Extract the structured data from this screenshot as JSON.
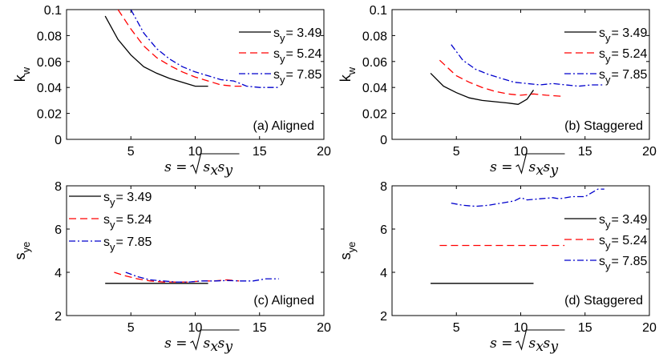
{
  "figure": {
    "xlabel_main": "s = ",
    "xlabel_sqrt_arg": "s",
    "xlabel_sub1": "x",
    "xlabel_sub2": "y"
  },
  "chart_data": [
    {
      "type": "line",
      "annotation": "(a) Aligned",
      "ylabel": "k",
      "ylabel_sub": "w",
      "xlim": [
        0,
        20
      ],
      "ylim": [
        0,
        0.1
      ],
      "xticks": [
        "5",
        "10",
        "15",
        "20"
      ],
      "yticks": [
        "0",
        "0.02",
        "0.04",
        "0.06",
        "0.08",
        "0.1"
      ],
      "legend_position": "top-right",
      "series": [
        {
          "legend_prefix": "s",
          "legend_sub": "y",
          "legend_value": "= 3.49",
          "color": "#000000",
          "dash": "",
          "x": [
            3.0,
            4.0,
            5.0,
            6.0,
            7.0,
            8.0,
            9.0,
            10.0,
            11.0
          ],
          "y": [
            0.095,
            0.077,
            0.065,
            0.056,
            0.051,
            0.047,
            0.044,
            0.041,
            0.041
          ]
        },
        {
          "legend_prefix": "s",
          "legend_sub": "y",
          "legend_value": "= 5.24",
          "color": "#ff0000",
          "dash": "9,5",
          "x": [
            4.0,
            5.0,
            6.0,
            7.0,
            8.0,
            9.0,
            10.0,
            11.0,
            12.0,
            13.0,
            13.6
          ],
          "y": [
            0.1,
            0.085,
            0.072,
            0.063,
            0.057,
            0.052,
            0.048,
            0.045,
            0.042,
            0.041,
            0.041
          ]
        },
        {
          "legend_prefix": "s",
          "legend_sub": "y",
          "legend_value": "= 7.85",
          "color": "#0000cc",
          "dash": "8,3,2,3",
          "x": [
            5.0,
            6.0,
            7.0,
            8.0,
            9.0,
            10.0,
            11.0,
            12.0,
            13.0,
            14.0,
            15.0,
            16.5
          ],
          "y": [
            0.1,
            0.082,
            0.07,
            0.062,
            0.056,
            0.052,
            0.049,
            0.046,
            0.045,
            0.041,
            0.04,
            0.04
          ]
        }
      ]
    },
    {
      "type": "line",
      "annotation": "(b) Staggered",
      "ylabel": "k",
      "ylabel_sub": "w",
      "xlim": [
        0,
        20
      ],
      "ylim": [
        0,
        0.1
      ],
      "xticks": [
        "5",
        "10",
        "15",
        "20"
      ],
      "yticks": [
        "0",
        "0.02",
        "0.04",
        "0.06",
        "0.08",
        "0.1"
      ],
      "legend_position": "top-right",
      "series": [
        {
          "legend_prefix": "s",
          "legend_sub": "y",
          "legend_value": "= 3.49",
          "color": "#000000",
          "dash": "",
          "x": [
            3.0,
            4.0,
            5.0,
            6.0,
            7.0,
            8.0,
            9.0,
            9.8,
            10.5,
            11.0
          ],
          "y": [
            0.051,
            0.041,
            0.036,
            0.032,
            0.03,
            0.029,
            0.028,
            0.027,
            0.031,
            0.038
          ]
        },
        {
          "legend_prefix": "s",
          "legend_sub": "y",
          "legend_value": "= 5.24",
          "color": "#ff0000",
          "dash": "9,5",
          "x": [
            3.7,
            5.0,
            6.0,
            7.0,
            8.0,
            9.0,
            10.0,
            11.0,
            12.0,
            13.4
          ],
          "y": [
            0.061,
            0.049,
            0.044,
            0.04,
            0.037,
            0.035,
            0.034,
            0.035,
            0.034,
            0.033
          ]
        },
        {
          "legend_prefix": "s",
          "legend_sub": "y",
          "legend_value": "= 7.85",
          "color": "#0000cc",
          "dash": "8,3,2,3",
          "x": [
            4.6,
            5.5,
            6.5,
            7.5,
            8.5,
            9.5,
            10.5,
            11.5,
            12.5,
            13.5,
            14.5,
            15.5,
            16.5
          ],
          "y": [
            0.073,
            0.061,
            0.054,
            0.05,
            0.047,
            0.044,
            0.043,
            0.042,
            0.043,
            0.042,
            0.041,
            0.042,
            0.042
          ]
        }
      ]
    },
    {
      "type": "line",
      "annotation": "(c) Aligned",
      "ylabel": "s",
      "ylabel_sub": "ye",
      "xlim": [
        0,
        20
      ],
      "ylim": [
        2,
        8
      ],
      "xticks": [
        "5",
        "10",
        "15",
        "20"
      ],
      "yticks": [
        "2",
        "4",
        "6",
        "8"
      ],
      "legend_position": "top-left",
      "series": [
        {
          "legend_prefix": "s",
          "legend_sub": "y",
          "legend_value": "= 3.49",
          "color": "#000000",
          "dash": "",
          "x": [
            3.0,
            11.0
          ],
          "y": [
            3.49,
            3.49
          ]
        },
        {
          "legend_prefix": "s",
          "legend_sub": "y",
          "legend_value": "= 5.24",
          "color": "#ff0000",
          "dash": "9,5",
          "x": [
            3.7,
            4.5,
            5.5,
            6.5,
            7.5,
            8.5,
            9.5,
            10.5,
            11.5,
            12.5,
            13.4
          ],
          "y": [
            4.0,
            3.85,
            3.7,
            3.6,
            3.55,
            3.55,
            3.55,
            3.6,
            3.6,
            3.65,
            3.6
          ]
        },
        {
          "legend_prefix": "s",
          "legend_sub": "y",
          "legend_value": "= 7.85",
          "color": "#0000cc",
          "dash": "8,3,2,3",
          "x": [
            4.6,
            5.5,
            6.5,
            7.5,
            8.5,
            9.5,
            10.5,
            11.5,
            12.5,
            13.5,
            14.5,
            15.5,
            16.5
          ],
          "y": [
            4.0,
            3.8,
            3.65,
            3.6,
            3.55,
            3.55,
            3.6,
            3.6,
            3.62,
            3.6,
            3.6,
            3.7,
            3.7
          ]
        }
      ]
    },
    {
      "type": "line",
      "annotation": "(d) Staggered",
      "ylabel": "s",
      "ylabel_sub": "ye",
      "xlim": [
        0,
        20
      ],
      "ylim": [
        2,
        8
      ],
      "xticks": [
        "5",
        "10",
        "15",
        "20"
      ],
      "yticks": [
        "2",
        "4",
        "6",
        "8"
      ],
      "legend_position": "right",
      "series": [
        {
          "legend_prefix": "s",
          "legend_sub": "y",
          "legend_value": "= 3.49",
          "color": "#000000",
          "dash": "",
          "x": [
            3.0,
            11.0
          ],
          "y": [
            3.49,
            3.49
          ]
        },
        {
          "legend_prefix": "s",
          "legend_sub": "y",
          "legend_value": "= 5.24",
          "color": "#ff0000",
          "dash": "9,5",
          "x": [
            3.7,
            13.4
          ],
          "y": [
            5.24,
            5.24
          ]
        },
        {
          "legend_prefix": "s",
          "legend_sub": "y",
          "legend_value": "= 7.85",
          "color": "#0000cc",
          "dash": "8,3,2,3",
          "x": [
            4.6,
            5.5,
            6.5,
            7.5,
            8.5,
            9.5,
            10.0,
            10.5,
            11.5,
            12.5,
            13.0,
            14.0,
            15.0,
            16.0,
            16.5
          ],
          "y": [
            7.2,
            7.1,
            7.05,
            7.1,
            7.2,
            7.3,
            7.45,
            7.35,
            7.4,
            7.45,
            7.4,
            7.5,
            7.5,
            7.85,
            7.85
          ]
        }
      ]
    }
  ]
}
